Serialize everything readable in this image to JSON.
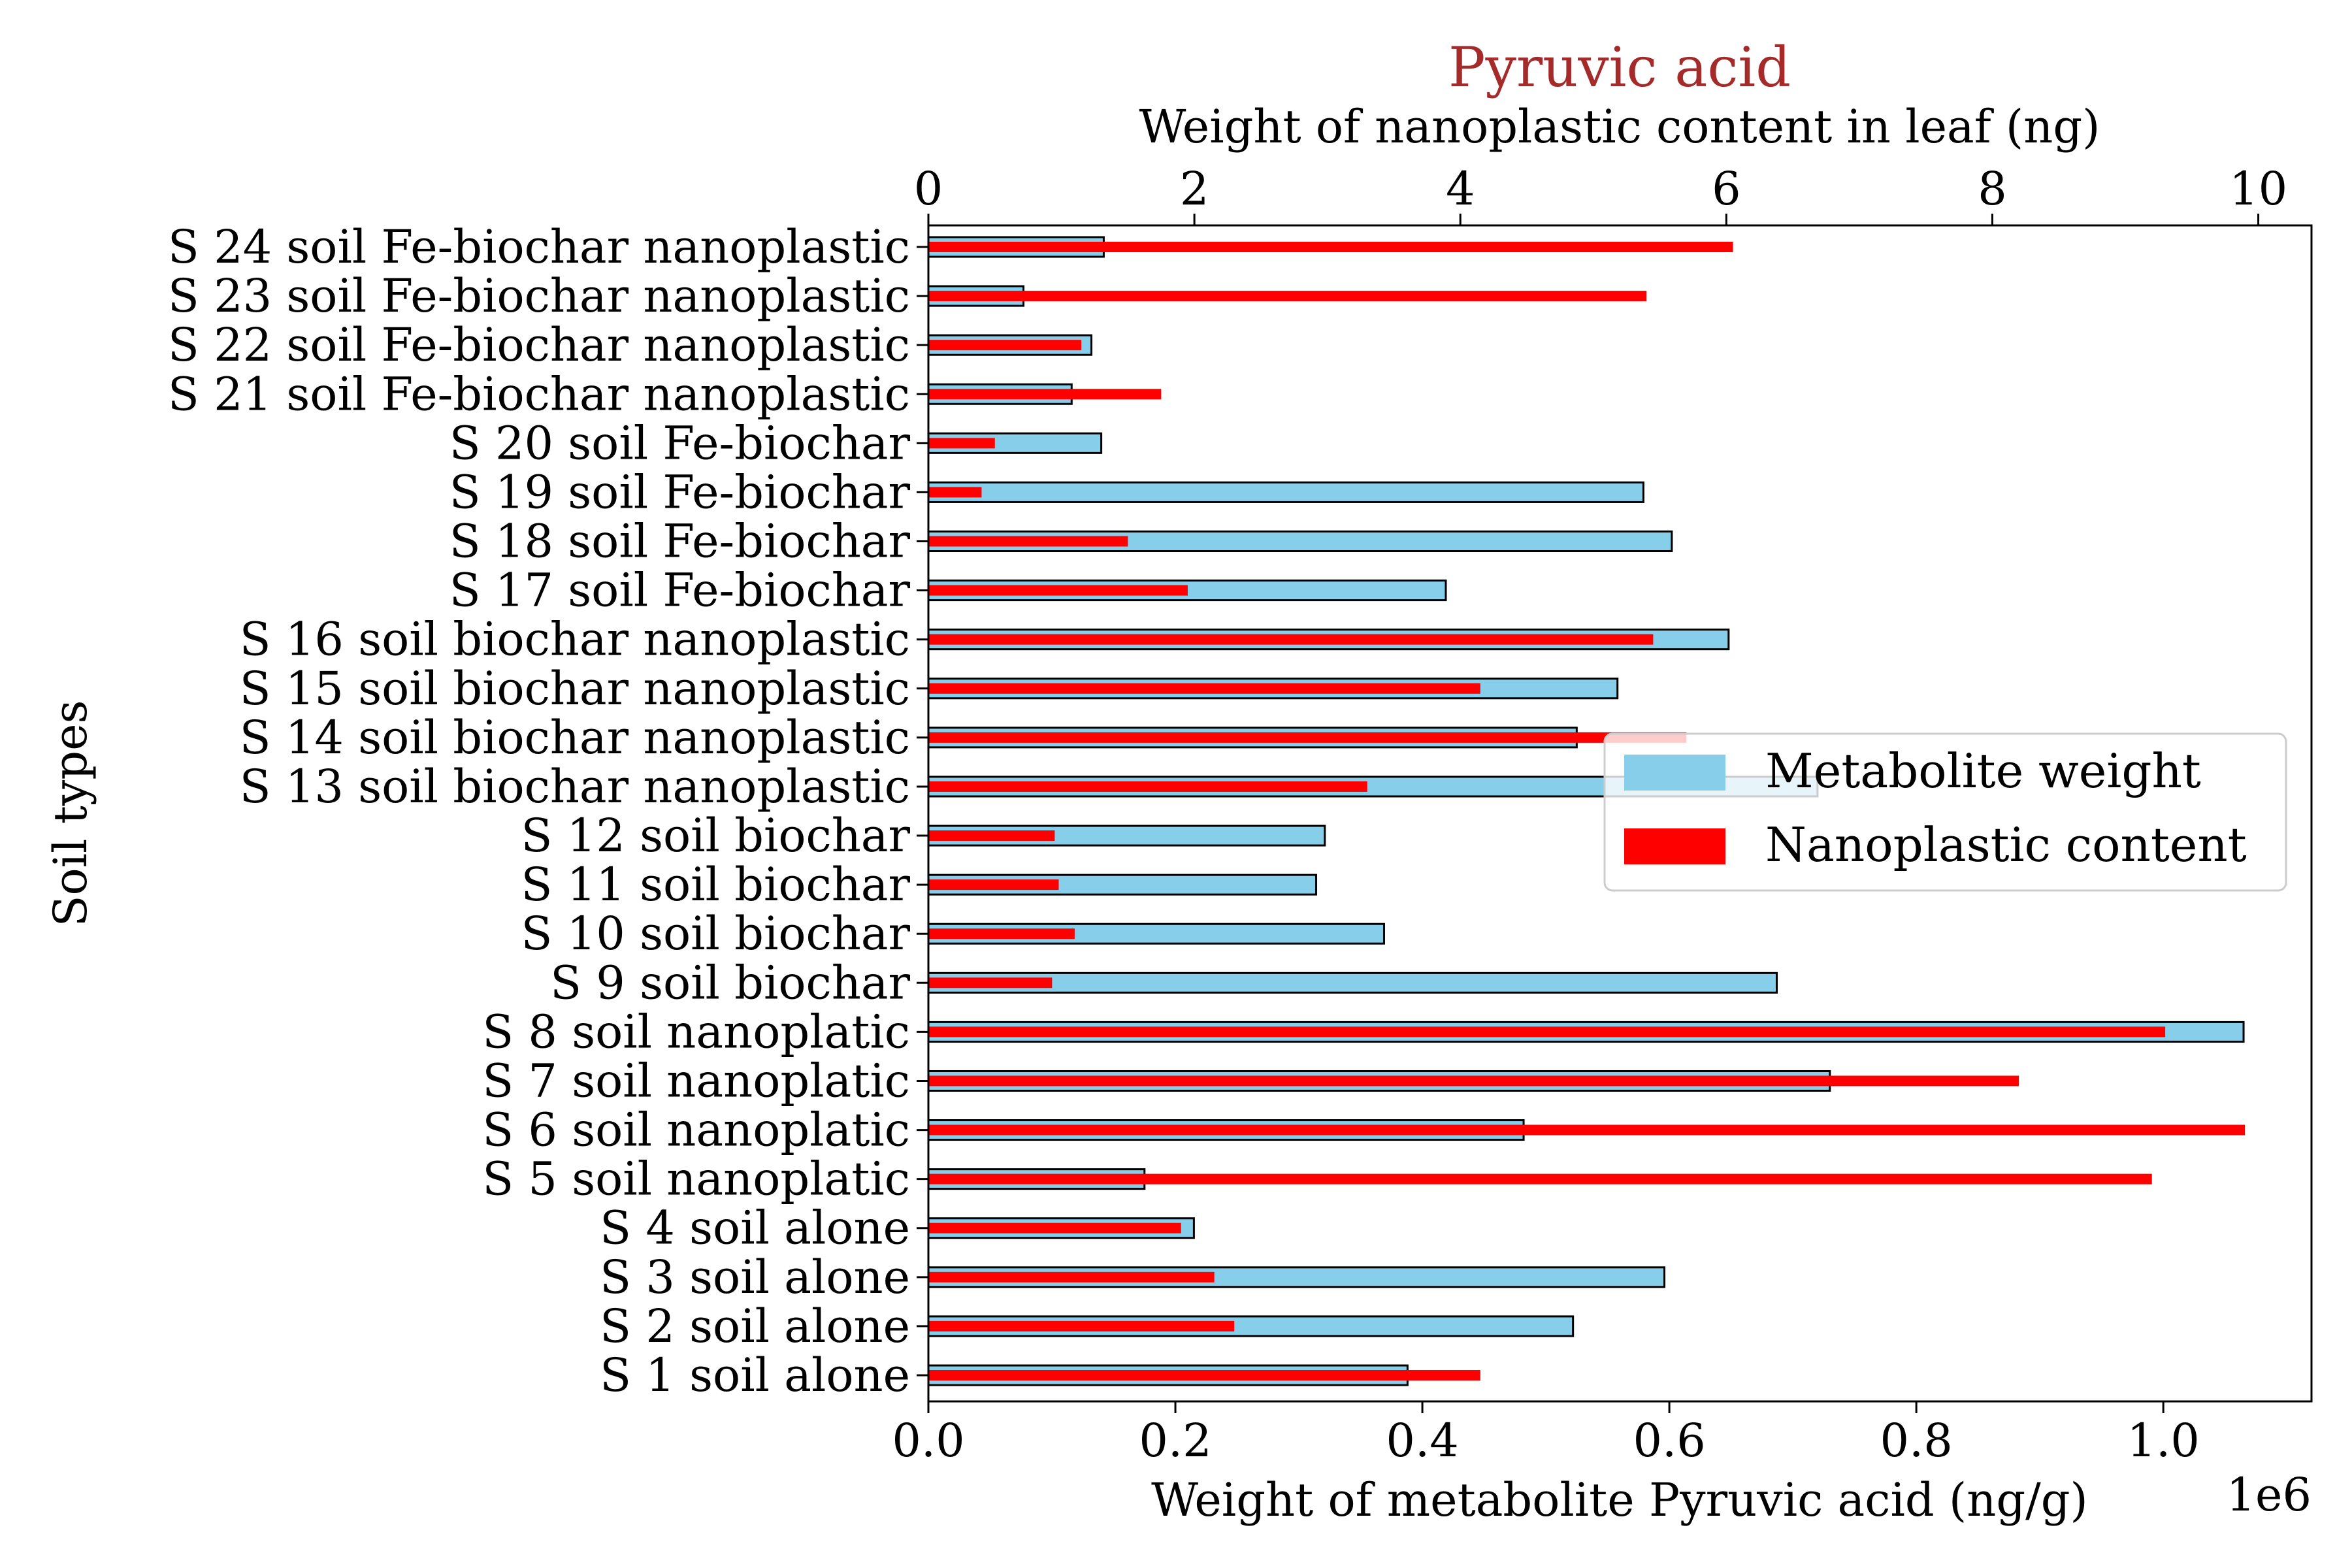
{
  "chart_data": {
    "type": "bar",
    "title": "Pyruvic acid",
    "title_color": "#a52a2a",
    "xlabel": "Weight of metabolite Pyruvic acid (ng/g)",
    "x_offset_label": "1e6",
    "x2label": "Weight of nanoplastic content in leaf (ng)",
    "ylabel": "Soil types",
    "xlim": [
      0,
      1.12
    ],
    "x2lim": [
      0,
      10.4
    ],
    "x_ticks": [
      0.0,
      0.2,
      0.4,
      0.6,
      0.8,
      1.0
    ],
    "x_tick_labels": [
      "0.0",
      "0.2",
      "0.4",
      "0.6",
      "0.8",
      "1.0"
    ],
    "x2_ticks": [
      0,
      2,
      4,
      6,
      8,
      10
    ],
    "x2_tick_labels": [
      "0",
      "2",
      "4",
      "6",
      "8",
      "10"
    ],
    "legend_position": "center-right",
    "categories": [
      "S 1 soil alone",
      "S 2 soil alone",
      "S 3 soil alone",
      "S 4 soil alone",
      "S 5 soil nanoplatic",
      "S 6 soil nanoplatic",
      "S 7 soil nanoplatic",
      "S 8 soil nanoplatic",
      "S 9 soil biochar",
      "S 10 soil biochar",
      "S 11 soil biochar",
      "S 12 soil biochar",
      "S 13 soil biochar nanoplastic",
      "S 14 soil biochar nanoplastic",
      "S 15 soil biochar nanoplastic",
      "S 16 soil biochar nanoplastic",
      "S 17 soil Fe-biochar",
      "S 18 soil Fe-biochar",
      "S 19 soil Fe-biochar",
      "S 20 soil Fe-biochar",
      "S 21 soil Fe-biochar nanoplastic",
      "S 22 soil Fe-biochar nanoplastic",
      "S 23 soil Fe-biochar nanoplastic",
      "S 24 soil Fe-biochar nanoplastic"
    ],
    "series": [
      {
        "name": "Metabolite weight",
        "axis": "bottom",
        "color": "#87ceeb",
        "edge_color": "#000000",
        "values": [
          0.388,
          0.522,
          0.596,
          0.215,
          0.175,
          0.482,
          0.73,
          1.065,
          0.687,
          0.369,
          0.314,
          0.321,
          0.72,
          0.525,
          0.558,
          0.648,
          0.419,
          0.602,
          0.579,
          0.14,
          0.116,
          0.132,
          0.077,
          0.142
        ]
      },
      {
        "name": "Nanoplastic content",
        "axis": "top",
        "color": "#ff0000",
        "values": [
          4.15,
          2.3,
          2.15,
          1.9,
          9.2,
          9.9,
          8.2,
          9.3,
          0.93,
          1.1,
          0.98,
          0.95,
          3.3,
          5.7,
          4.15,
          5.45,
          1.95,
          1.5,
          0.4,
          0.5,
          1.75,
          1.15,
          5.4,
          6.05
        ]
      }
    ]
  }
}
